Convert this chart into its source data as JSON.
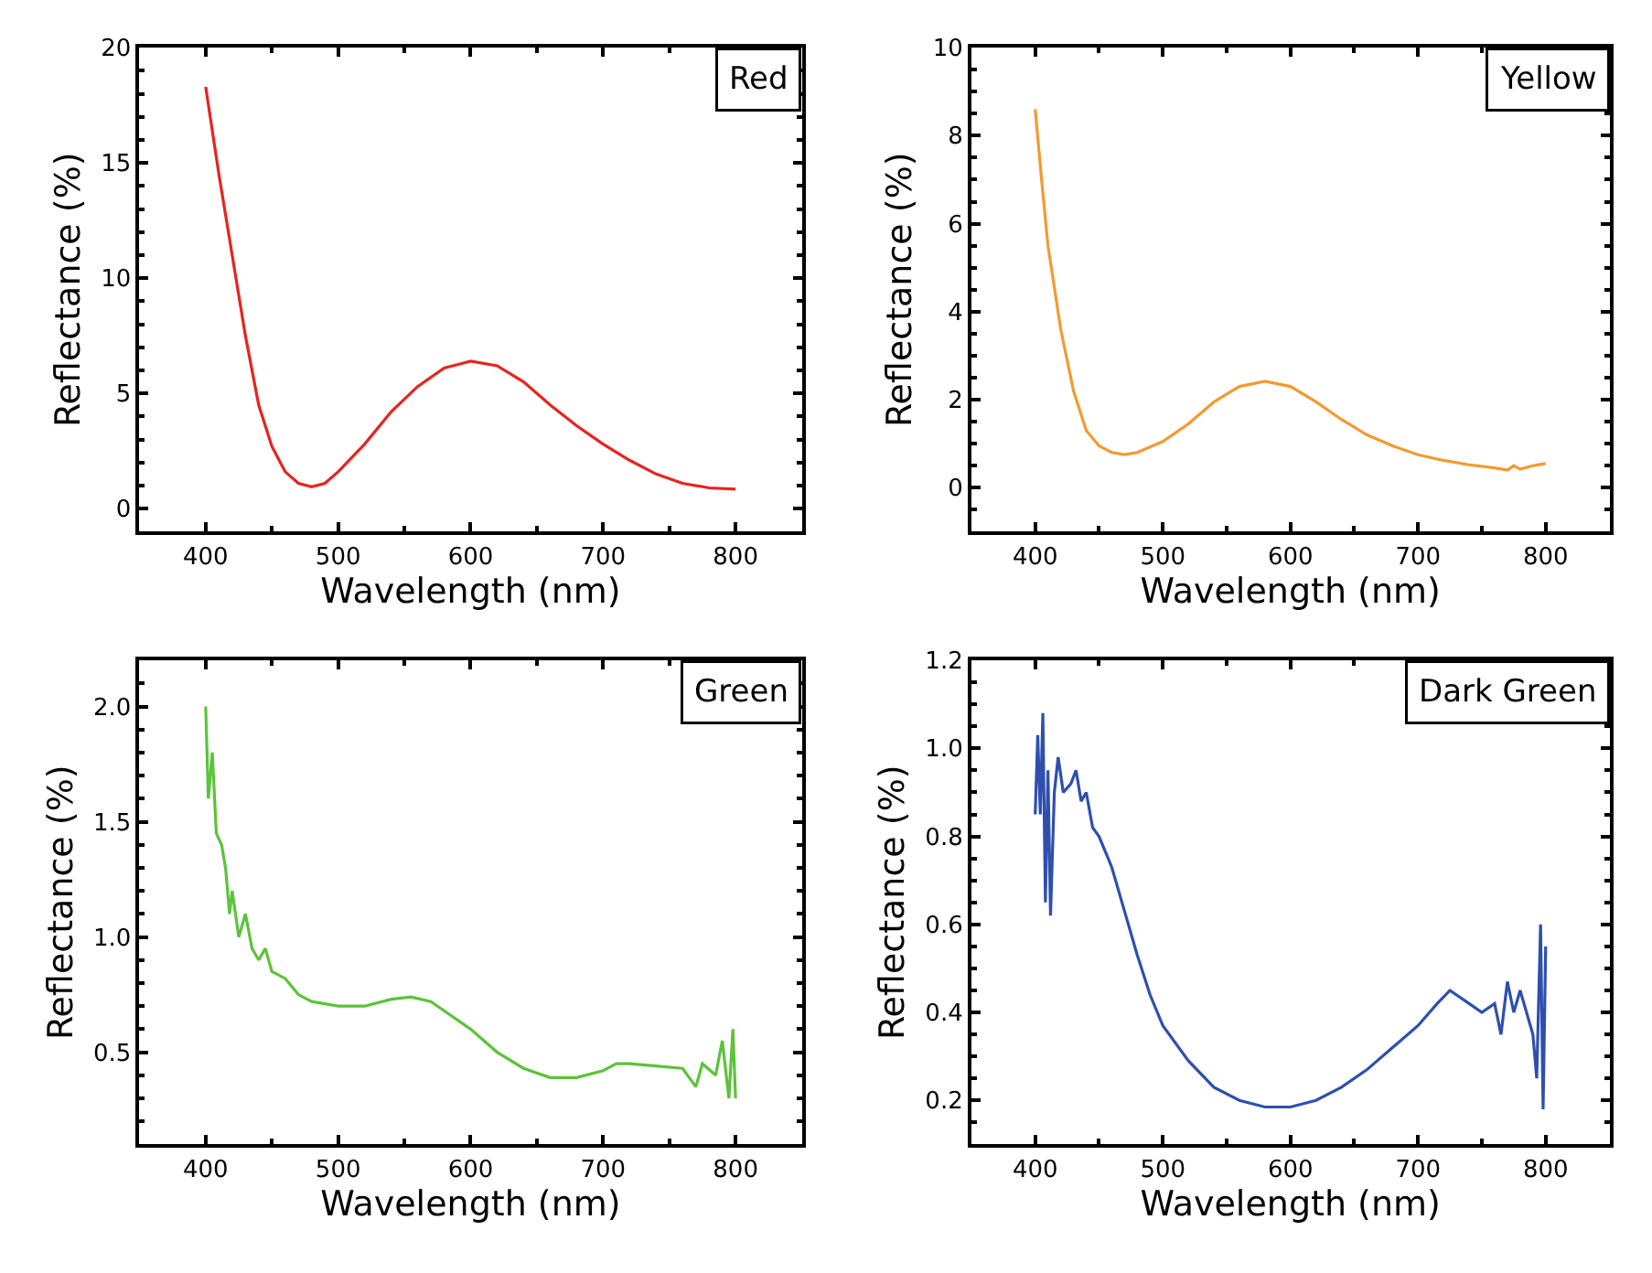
{
  "chart_data": [
    {
      "type": "line",
      "xlabel": "Wavelength (nm)",
      "ylabel": "Reflectance (%)",
      "annotations": [
        "Red"
      ],
      "xlim": [
        350,
        850
      ],
      "ylim": [
        -1,
        20
      ],
      "xticks": [
        400,
        500,
        600,
        700,
        800
      ],
      "yticks": [
        0,
        5,
        10,
        15,
        20
      ],
      "x": [
        400,
        410,
        420,
        430,
        440,
        450,
        460,
        470,
        480,
        490,
        500,
        520,
        540,
        560,
        580,
        600,
        620,
        640,
        660,
        680,
        700,
        720,
        740,
        760,
        780,
        800
      ],
      "series": [
        {
          "color": "#e8231f",
          "values": [
            18.3,
            14.5,
            11,
            7.5,
            4.5,
            2.7,
            1.6,
            1.1,
            0.95,
            1.1,
            1.6,
            2.8,
            4.2,
            5.3,
            6.1,
            6.4,
            6.2,
            5.5,
            4.5,
            3.6,
            2.8,
            2.1,
            1.5,
            1.1,
            0.9,
            0.85
          ]
        }
      ]
    },
    {
      "type": "line",
      "xlabel": "Wavelength (nm)",
      "ylabel": "Reflectance (%)",
      "annotations": [
        "Yellow"
      ],
      "xlim": [
        350,
        850
      ],
      "ylim": [
        -1,
        10
      ],
      "xticks": [
        400,
        500,
        600,
        700,
        800
      ],
      "yticks": [
        0,
        2,
        4,
        6,
        8,
        10
      ],
      "x": [
        400,
        405,
        410,
        420,
        430,
        440,
        450,
        460,
        470,
        480,
        500,
        520,
        540,
        560,
        580,
        600,
        620,
        640,
        660,
        680,
        700,
        720,
        740,
        760,
        770,
        775,
        780,
        790,
        800
      ],
      "series": [
        {
          "color": "#f39a2e",
          "values": [
            8.6,
            7,
            5.5,
            3.6,
            2.2,
            1.3,
            0.95,
            0.8,
            0.75,
            0.8,
            1.05,
            1.45,
            1.95,
            2.3,
            2.42,
            2.3,
            1.95,
            1.55,
            1.2,
            0.95,
            0.75,
            0.62,
            0.52,
            0.45,
            0.4,
            0.5,
            0.42,
            0.5,
            0.55
          ]
        }
      ]
    },
    {
      "type": "line",
      "xlabel": "Wavelength (nm)",
      "ylabel": "Reflectance (%)",
      "annotations": [
        "Green"
      ],
      "xlim": [
        350,
        850
      ],
      "ylim": [
        0.1,
        2.2
      ],
      "xticks": [
        400,
        500,
        600,
        700,
        800
      ],
      "yticks": [
        {
          "value": 0.5,
          "label": "0.5"
        },
        {
          "value": 1.0,
          "label": "1.0"
        },
        {
          "value": 1.5,
          "label": "1.5"
        },
        {
          "value": 2.0,
          "label": "2.0"
        }
      ],
      "x": [
        400,
        402,
        405,
        408,
        412,
        415,
        418,
        420,
        425,
        430,
        435,
        440,
        445,
        450,
        460,
        470,
        480,
        500,
        520,
        540,
        555,
        570,
        580,
        600,
        620,
        640,
        660,
        680,
        700,
        710,
        720,
        740,
        760,
        770,
        775,
        785,
        790,
        795,
        798,
        800
      ],
      "series": [
        {
          "color": "#5cc33a",
          "values": [
            2.0,
            1.6,
            1.8,
            1.45,
            1.4,
            1.3,
            1.1,
            1.2,
            1.0,
            1.1,
            0.95,
            0.9,
            0.95,
            0.85,
            0.82,
            0.75,
            0.72,
            0.7,
            0.7,
            0.73,
            0.74,
            0.72,
            0.68,
            0.6,
            0.5,
            0.43,
            0.39,
            0.39,
            0.42,
            0.45,
            0.45,
            0.44,
            0.43,
            0.35,
            0.45,
            0.4,
            0.55,
            0.3,
            0.6,
            0.3
          ]
        }
      ]
    },
    {
      "type": "line",
      "xlabel": "Wavelength (nm)",
      "ylabel": "Reflectance (%)",
      "annotations": [
        "Dark Green"
      ],
      "xlim": [
        350,
        850
      ],
      "ylim": [
        0.1,
        1.2
      ],
      "xticks": [
        400,
        500,
        600,
        700,
        800
      ],
      "yticks": [
        0.2,
        0.4,
        0.6,
        0.8,
        {
          "value": 1.0,
          "label": "1.0"
        },
        1.2
      ],
      "x": [
        400,
        402,
        404,
        406,
        408,
        410,
        412,
        415,
        418,
        422,
        428,
        432,
        436,
        440,
        445,
        450,
        460,
        470,
        480,
        490,
        500,
        520,
        540,
        560,
        580,
        600,
        620,
        640,
        660,
        680,
        700,
        715,
        725,
        740,
        750,
        760,
        765,
        770,
        775,
        780,
        790,
        793,
        796,
        798,
        800
      ],
      "series": [
        {
          "color": "#2e4fae",
          "values": [
            0.85,
            1.03,
            0.85,
            1.08,
            0.65,
            0.95,
            0.62,
            0.9,
            0.98,
            0.9,
            0.92,
            0.95,
            0.88,
            0.9,
            0.82,
            0.8,
            0.73,
            0.63,
            0.53,
            0.44,
            0.37,
            0.29,
            0.23,
            0.2,
            0.185,
            0.185,
            0.2,
            0.23,
            0.27,
            0.32,
            0.37,
            0.42,
            0.45,
            0.42,
            0.4,
            0.42,
            0.35,
            0.47,
            0.4,
            0.45,
            0.35,
            0.25,
            0.6,
            0.18,
            0.55
          ]
        }
      ]
    }
  ]
}
